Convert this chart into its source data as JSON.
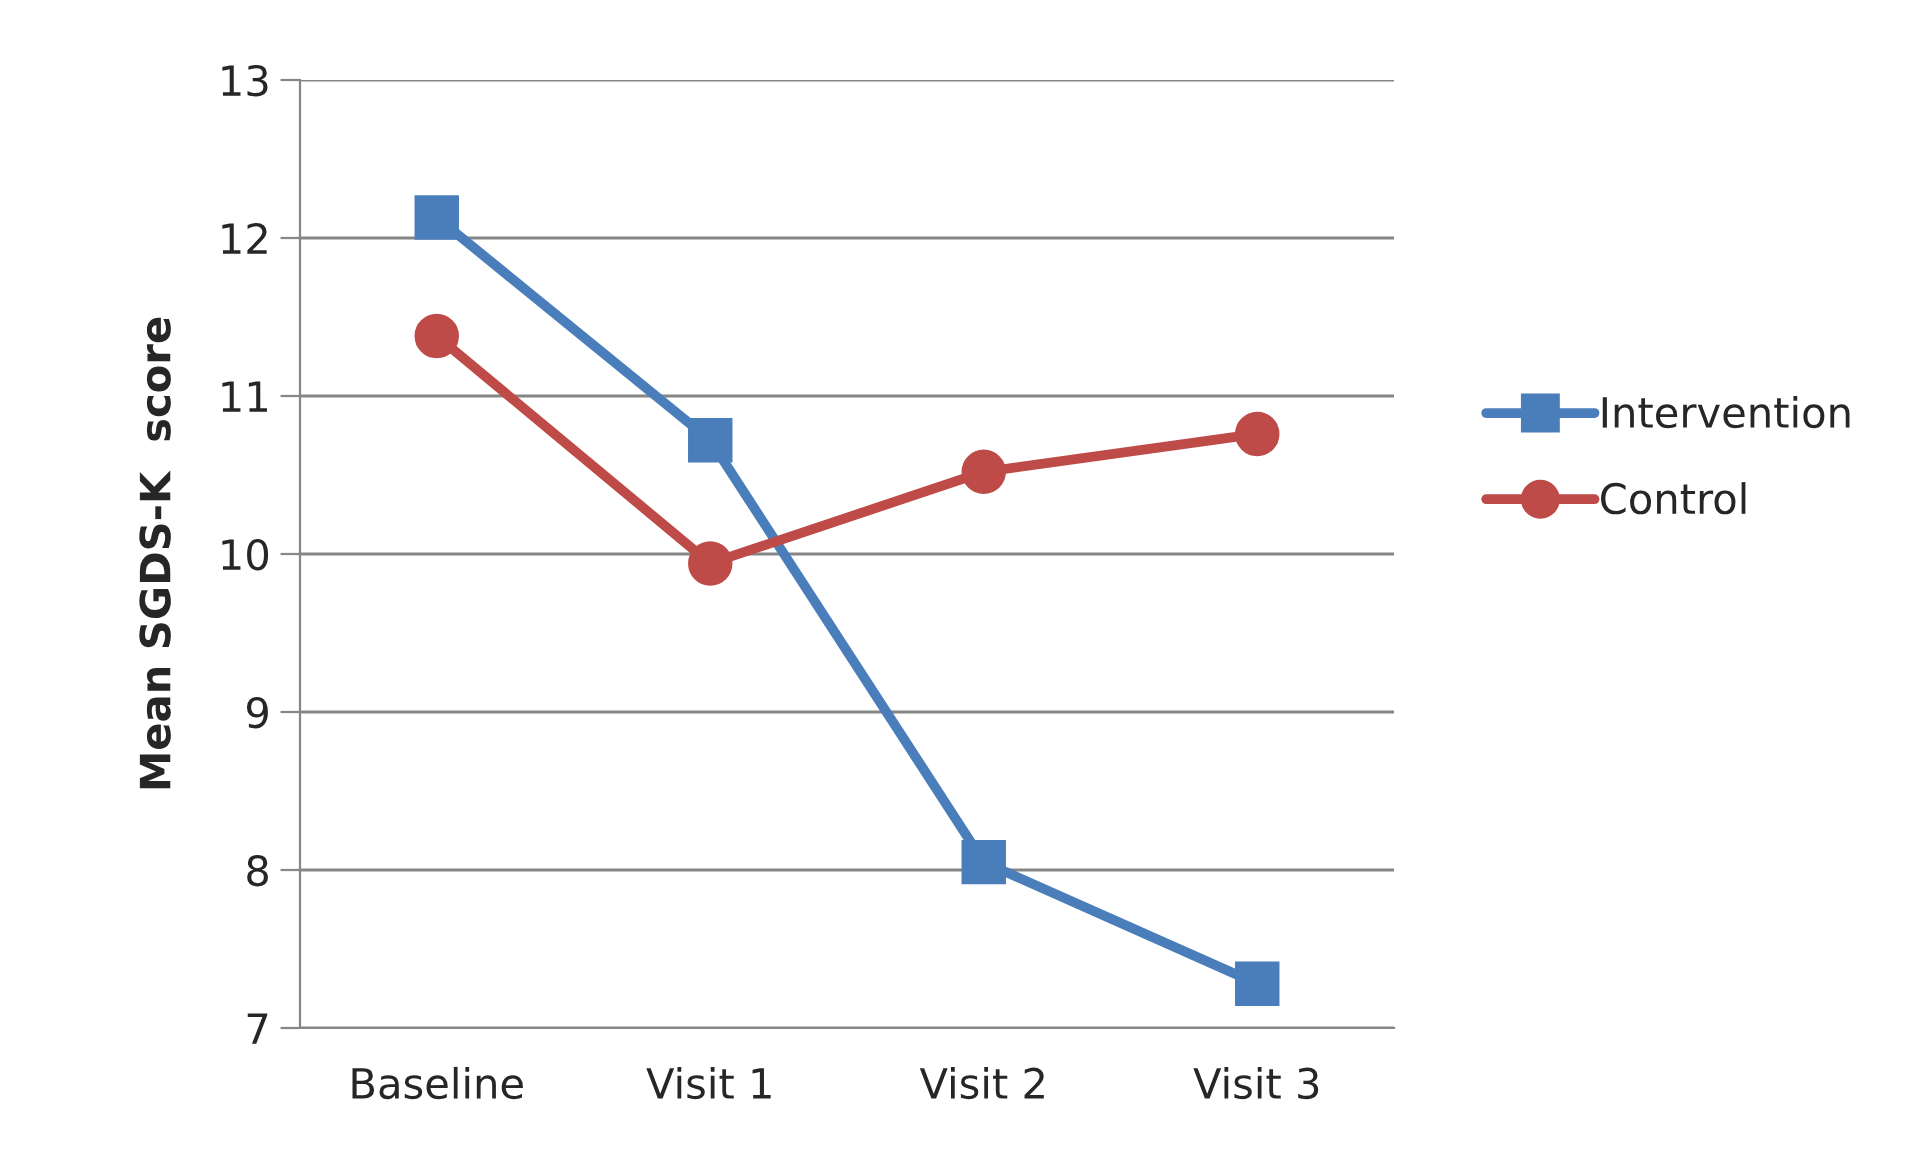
{
  "chart_data": {
    "type": "line",
    "ylabel": "Mean SGDS-K  score",
    "categories": [
      "Baseline",
      "Visit 1",
      "Visit 2",
      "Visit 3"
    ],
    "series": [
      {
        "name": "Intervention",
        "color": "#4a7ebb",
        "marker": "square",
        "values": [
          12.13,
          10.72,
          8.05,
          7.28
        ]
      },
      {
        "name": "Control",
        "color": "#be4b48",
        "marker": "circle",
        "values": [
          11.38,
          9.94,
          10.52,
          10.76
        ]
      }
    ],
    "ylim": [
      7,
      13
    ],
    "yticks": [
      7,
      8,
      9,
      10,
      11,
      12,
      13
    ],
    "grid": "y",
    "legend": "right",
    "line_style": "solid"
  }
}
